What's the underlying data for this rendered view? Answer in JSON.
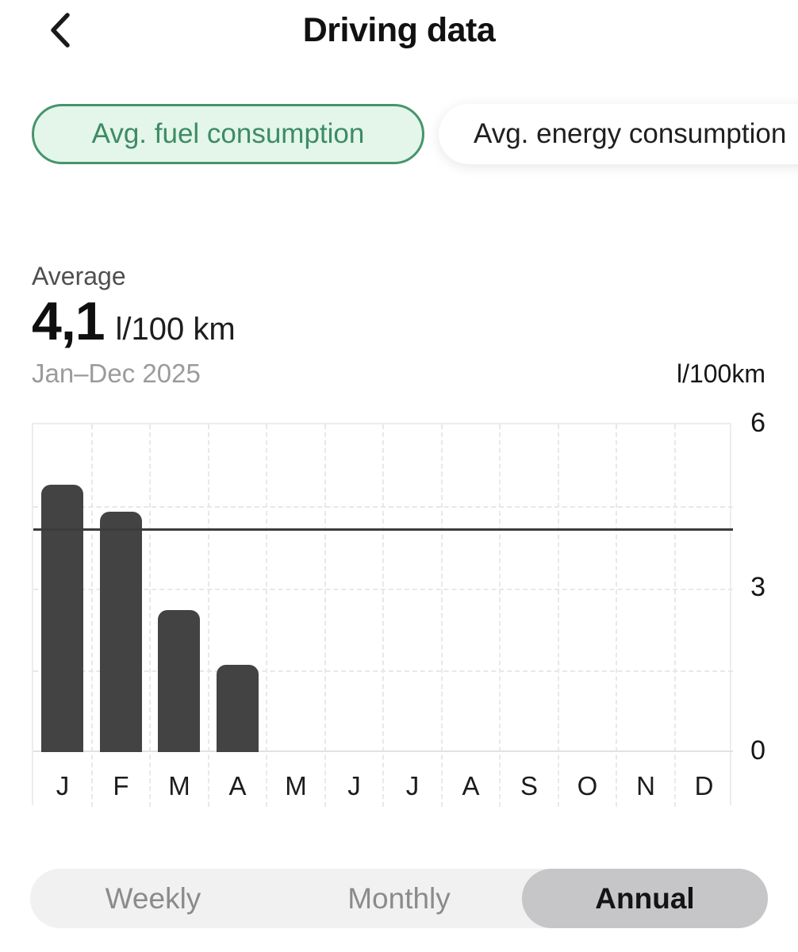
{
  "header": {
    "title": "Driving data",
    "back_icon": "chevron-left"
  },
  "tabs": {
    "fuel_label": "Avg. fuel consumption",
    "energy_label": "Avg. energy consumption",
    "selected": "fuel",
    "selected_bg": "#e4f5ea",
    "selected_border": "#47946c",
    "selected_text": "#3c8c63"
  },
  "summary": {
    "label": "Average",
    "value": "4,1",
    "unit": "l/100 km",
    "period": "Jan–Dec 2025",
    "axis_unit": "l/100km"
  },
  "chart_data": {
    "type": "bar",
    "title": "Avg. fuel consumption, Jan–Dec 2025",
    "categories": [
      "J",
      "F",
      "M",
      "A",
      "M",
      "J",
      "J",
      "A",
      "S",
      "O",
      "N",
      "D"
    ],
    "values": [
      4.9,
      4.4,
      2.6,
      1.6,
      null,
      null,
      null,
      null,
      null,
      null,
      null,
      null
    ],
    "average_line": 4.1,
    "ylabel": "l/100km",
    "ylim": [
      0,
      6
    ],
    "yticks": [
      6,
      3,
      0
    ],
    "minor_gridlines": [
      4.5,
      3,
      1.5
    ],
    "grid": "dashed",
    "bar_color": "#434343",
    "average_line_color": "#3c3c3c"
  },
  "period_selector": {
    "options": [
      "Weekly",
      "Monthly",
      "Annual"
    ],
    "selected": "Annual",
    "selected_bg": "#c6c6c8"
  }
}
